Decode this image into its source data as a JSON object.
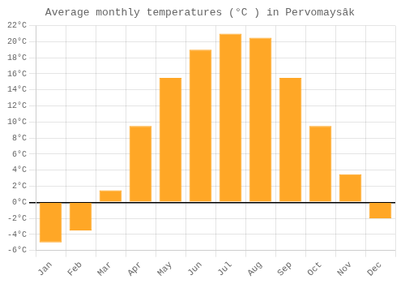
{
  "chart_data": {
    "type": "bar",
    "title": "Average monthly temperatures (°C ) in Pervomaysâk",
    "categories": [
      "Jan",
      "Feb",
      "Mar",
      "Apr",
      "May",
      "Jun",
      "Jul",
      "Aug",
      "Sep",
      "Oct",
      "Nov",
      "Dec"
    ],
    "values": [
      -5.0,
      -3.5,
      1.5,
      9.5,
      15.5,
      19.0,
      21.0,
      20.5,
      15.5,
      9.5,
      3.5,
      -2.0
    ],
    "color": "#FFA726",
    "ylim": [
      -6,
      22
    ],
    "yticks": [
      {
        "value": -6,
        "label": "-6°C"
      },
      {
        "value": -4,
        "label": "-4°C"
      },
      {
        "value": -2,
        "label": "-2°C"
      },
      {
        "value": 0,
        "label": "0°C"
      },
      {
        "value": 2,
        "label": "2°C"
      },
      {
        "value": 4,
        "label": "4°C"
      },
      {
        "value": 6,
        "label": "6°C"
      },
      {
        "value": 8,
        "label": "8°C"
      },
      {
        "value": 10,
        "label": "10°C"
      },
      {
        "value": 12,
        "label": "12°C"
      },
      {
        "value": 14,
        "label": "14°C"
      },
      {
        "value": 16,
        "label": "16°C"
      },
      {
        "value": 18,
        "label": "18°C"
      },
      {
        "value": 20,
        "label": "20°C"
      },
      {
        "value": 22,
        "label": "22°C"
      }
    ],
    "grid": true
  }
}
